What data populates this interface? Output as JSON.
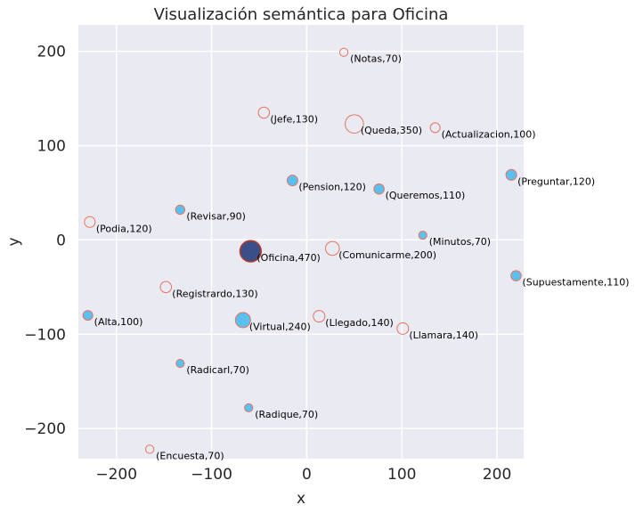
{
  "chart_data": {
    "type": "scatter",
    "title": "Visualización semántica para Oficina",
    "xlabel": "x",
    "ylabel": "y",
    "xlim": [
      -240,
      228
    ],
    "ylim": [
      -232,
      228
    ],
    "xticks": [
      {
        "value": -200,
        "label": "−200"
      },
      {
        "value": -100,
        "label": "−100"
      },
      {
        "value": 0,
        "label": "0"
      },
      {
        "value": 100,
        "label": "100"
      },
      {
        "value": 200,
        "label": "200"
      }
    ],
    "yticks": [
      {
        "value": 200,
        "label": "200"
      },
      {
        "value": 100,
        "label": "100"
      },
      {
        "value": 0,
        "label": "0"
      },
      {
        "value": -100,
        "label": "−100"
      },
      {
        "value": -200,
        "label": "−200"
      }
    ],
    "grid": true,
    "colors": {
      "background": "#eaeaf2",
      "grid": "#ffffff",
      "filled": "#5bc0f0",
      "edge": "#e8735f",
      "highlight": "#3a4f88"
    },
    "points": [
      {
        "label": "(Notas,70)",
        "x": 39,
        "y": 199,
        "weight": 70,
        "filled": false
      },
      {
        "label": "(Jefe,130)",
        "x": -45,
        "y": 135,
        "weight": 130,
        "filled": false
      },
      {
        "label": "(Queda,350)",
        "x": 50,
        "y": 123,
        "weight": 350,
        "filled": false
      },
      {
        "label": "(Actualizacion,100)",
        "x": 135,
        "y": 119,
        "weight": 100,
        "filled": false
      },
      {
        "label": "(Preguntar,120)",
        "x": 215,
        "y": 69,
        "weight": 120,
        "filled": true
      },
      {
        "label": "(Pension,120)",
        "x": -15,
        "y": 63,
        "weight": 120,
        "filled": true
      },
      {
        "label": "(Queremos,110)",
        "x": 76,
        "y": 54,
        "weight": 110,
        "filled": true
      },
      {
        "label": "(Revisar,90)",
        "x": -133,
        "y": 32,
        "weight": 90,
        "filled": true
      },
      {
        "label": "(Podia,120)",
        "x": -228,
        "y": 19,
        "weight": 120,
        "filled": false
      },
      {
        "label": "(Minutos,70)",
        "x": 122,
        "y": 5,
        "weight": 70,
        "filled": true
      },
      {
        "label": "(Comunicarme,200)",
        "x": 27,
        "y": -9,
        "weight": 200,
        "filled": false
      },
      {
        "label": "(Oficina,470)",
        "x": -59,
        "y": -12,
        "weight": 470,
        "filled": true,
        "highlight": true
      },
      {
        "label": "(Supuestamente,110)",
        "x": 220,
        "y": -38,
        "weight": 110,
        "filled": true
      },
      {
        "label": "(Registrardo,130)",
        "x": -148,
        "y": -50,
        "weight": 130,
        "filled": false
      },
      {
        "label": "(Alta,100)",
        "x": -230,
        "y": -80,
        "weight": 100,
        "filled": true
      },
      {
        "label": "(Llegado,140)",
        "x": 13,
        "y": -81,
        "weight": 140,
        "filled": false
      },
      {
        "label": "(Virtual,240)",
        "x": -67,
        "y": -85,
        "weight": 240,
        "filled": true
      },
      {
        "label": "(Llamara,140)",
        "x": 101,
        "y": -94,
        "weight": 140,
        "filled": false
      },
      {
        "label": "(Radicarl,70)",
        "x": -133,
        "y": -131,
        "weight": 70,
        "filled": true
      },
      {
        "label": "(Radique,70)",
        "x": -61,
        "y": -178,
        "weight": 70,
        "filled": true
      },
      {
        "label": "(Encuesta,70)",
        "x": -165,
        "y": -222,
        "weight": 70,
        "filled": false
      }
    ]
  }
}
